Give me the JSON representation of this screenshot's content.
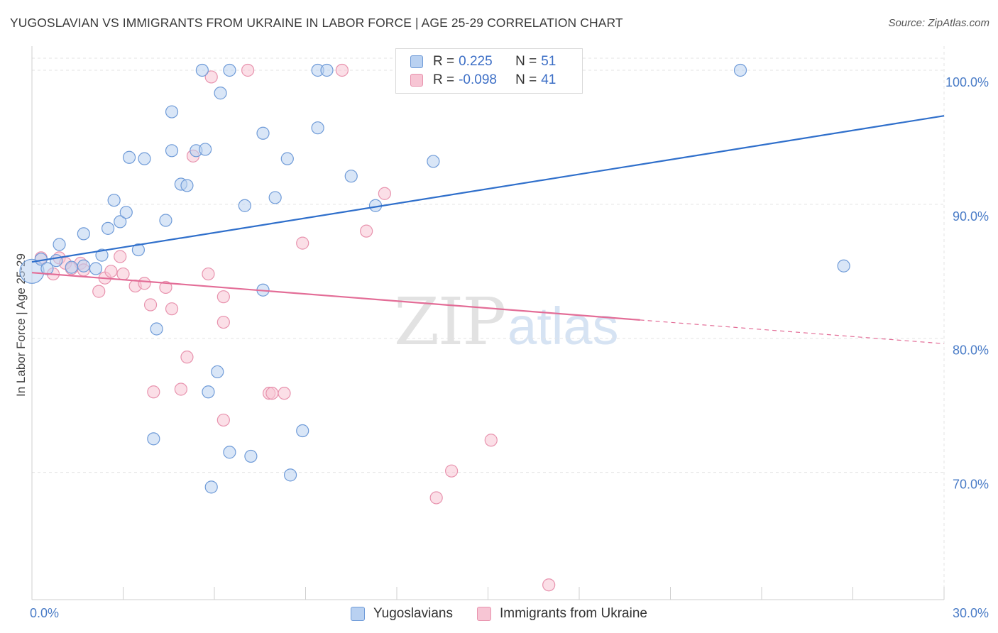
{
  "header": {
    "title": "YUGOSLAVIAN VS IMMIGRANTS FROM UKRAINE IN LABOR FORCE | AGE 25-29 CORRELATION CHART",
    "source": "Source: ZipAtlas.com"
  },
  "watermark": {
    "zip": "ZIP",
    "atlas": "atlas"
  },
  "legend": {
    "rows": [
      {
        "r_label": "R =",
        "r_value": "0.225",
        "n_label": "N =",
        "n_value": "51"
      },
      {
        "r_label": "R =",
        "r_value": "-0.098",
        "n_label": "N =",
        "n_value": "41"
      }
    ]
  },
  "colors": {
    "blue_fill": "#b9d1f1",
    "blue_stroke": "#6f9bd8",
    "blue_line": "#2f6fcb",
    "pink_fill": "#f7c5d4",
    "pink_stroke": "#e893ae",
    "pink_line": "#e36d97",
    "grid": "#e3e3e3",
    "axis_text": "#4a7cc7"
  },
  "chart_data": {
    "type": "scatter",
    "title": "YUGOSLAVIAN VS IMMIGRANTS FROM UKRAINE IN LABOR FORCE | AGE 25-29 CORRELATION CHART",
    "xlabel": "",
    "ylabel": "In Labor Force | Age 25-29",
    "xlim": [
      0,
      30
    ],
    "ylim": [
      60.5,
      101.8
    ],
    "x_tick_labels": [
      "0.0%",
      "30.0%"
    ],
    "y_ticks": [
      70,
      80,
      90,
      100
    ],
    "y_tick_labels": [
      "70.0%",
      "80.0%",
      "90.0%",
      "100.0%"
    ],
    "grid": true,
    "legend_position": "bottom-center",
    "series": [
      {
        "name": "Yugoslavians",
        "color": "#6f9bd8",
        "trend": {
          "x": [
            0,
            30
          ],
          "y": [
            85.7,
            96.6
          ],
          "style": "solid"
        },
        "points": [
          [
            0.0,
            85.0
          ],
          [
            0.3,
            85.9
          ],
          [
            0.5,
            85.2
          ],
          [
            0.8,
            85.8
          ],
          [
            0.9,
            87.0
          ],
          [
            1.3,
            85.3
          ],
          [
            1.7,
            85.4
          ],
          [
            2.1,
            85.2
          ],
          [
            1.7,
            87.8
          ],
          [
            2.3,
            86.2
          ],
          [
            2.5,
            88.2
          ],
          [
            2.7,
            90.3
          ],
          [
            2.9,
            88.7
          ],
          [
            3.1,
            89.4
          ],
          [
            3.2,
            93.5
          ],
          [
            3.5,
            86.6
          ],
          [
            3.7,
            93.4
          ],
          [
            4.4,
            88.8
          ],
          [
            4.6,
            96.9
          ],
          [
            4.6,
            94.0
          ],
          [
            4.9,
            91.5
          ],
          [
            5.1,
            91.4
          ],
          [
            4.1,
            80.7
          ],
          [
            5.4,
            94.0
          ],
          [
            5.7,
            94.1
          ],
          [
            5.6,
            100.0
          ],
          [
            5.8,
            76.0
          ],
          [
            6.2,
            98.3
          ],
          [
            6.1,
            77.5
          ],
          [
            6.5,
            100.0
          ],
          [
            6.5,
            71.5
          ],
          [
            7.0,
            89.9
          ],
          [
            7.2,
            71.2
          ],
          [
            7.6,
            95.3
          ],
          [
            7.6,
            83.6
          ],
          [
            8.0,
            90.5
          ],
          [
            8.4,
            93.4
          ],
          [
            8.5,
            69.8
          ],
          [
            8.9,
            73.1
          ],
          [
            9.4,
            100.0
          ],
          [
            9.7,
            100.0
          ],
          [
            9.4,
            95.7
          ],
          [
            10.5,
            92.1
          ],
          [
            11.3,
            89.9
          ],
          [
            13.2,
            93.2
          ],
          [
            13.7,
            99.6
          ],
          [
            17.7,
            100.0
          ],
          [
            23.3,
            100.0
          ],
          [
            26.7,
            85.4
          ],
          [
            4.0,
            72.5
          ],
          [
            5.9,
            68.9
          ]
        ]
      },
      {
        "name": "Immigrants from Ukraine",
        "color": "#e893ae",
        "trend": {
          "x": [
            0,
            30
          ],
          "y": [
            84.9,
            79.6
          ],
          "solid_until_x": 20.0
        },
        "points": [
          [
            0.3,
            86.0
          ],
          [
            0.7,
            84.8
          ],
          [
            0.9,
            86.0
          ],
          [
            1.1,
            85.6
          ],
          [
            1.6,
            85.6
          ],
          [
            1.7,
            85.1
          ],
          [
            2.2,
            83.5
          ],
          [
            2.4,
            84.5
          ],
          [
            2.6,
            85.0
          ],
          [
            2.9,
            86.1
          ],
          [
            3.0,
            84.8
          ],
          [
            3.4,
            83.9
          ],
          [
            3.7,
            84.1
          ],
          [
            3.9,
            82.5
          ],
          [
            4.0,
            76.0
          ],
          [
            4.4,
            83.8
          ],
          [
            4.6,
            82.2
          ],
          [
            4.9,
            76.2
          ],
          [
            5.1,
            78.6
          ],
          [
            5.3,
            93.6
          ],
          [
            5.8,
            84.8
          ],
          [
            5.9,
            99.5
          ],
          [
            6.3,
            83.1
          ],
          [
            6.3,
            81.2
          ],
          [
            6.3,
            73.9
          ],
          [
            7.1,
            100.0
          ],
          [
            7.8,
            75.9
          ],
          [
            7.9,
            75.9
          ],
          [
            8.3,
            75.9
          ],
          [
            8.9,
            87.1
          ],
          [
            10.2,
            100.0
          ],
          [
            11.0,
            88.0
          ],
          [
            11.6,
            90.8
          ],
          [
            13.3,
            68.1
          ],
          [
            13.8,
            70.1
          ],
          [
            14.2,
            100.0
          ],
          [
            15.1,
            72.4
          ],
          [
            17.8,
            100.0
          ],
          [
            16.4,
            100.0
          ],
          [
            17.0,
            61.6
          ],
          [
            1.3,
            85.2
          ]
        ]
      }
    ]
  },
  "bottom_legend": [
    "Yugoslavians",
    "Immigrants from Ukraine"
  ]
}
